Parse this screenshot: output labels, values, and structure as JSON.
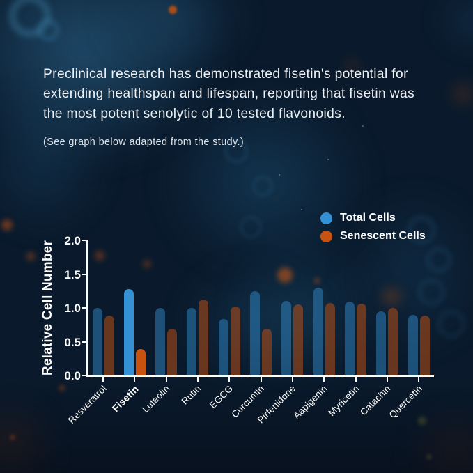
{
  "intro": {
    "lines": [
      "Preclinical research has demonstrated fisetin's potential for",
      "extending healthspan and lifespan, reporting that fisetin was",
      "the most potent senolytic of 10 tested flavonoids."
    ],
    "note": "(See graph below adapted from the study.)"
  },
  "colors": {
    "total_cells": "#3492d4",
    "senescent_cells": "#c8520f",
    "background": "#0a1a2c",
    "text": "#edf1f5"
  },
  "legend": {
    "items": [
      {
        "label": "Total Cells",
        "color": "#3492d4"
      },
      {
        "label": "Senescent Cells",
        "color": "#c8520f"
      }
    ]
  },
  "chart_data": {
    "type": "bar",
    "title": "",
    "xlabel": "",
    "ylabel": "Relative Cell Number",
    "ylim": [
      0,
      2.0
    ],
    "yticks": [
      "0.0",
      "0.5",
      "1.0",
      "1.5",
      "2.0"
    ],
    "grid": false,
    "legend_position": "upper right",
    "highlight_category": "Fisetin",
    "categories": [
      "Resveratrol",
      "Fisetin",
      "Luteolin",
      "Rutin",
      "EGCG",
      "Curcumin",
      "Pirfenidone",
      "Aapigenin",
      "Myricetin",
      "Catachin",
      "Quercetin"
    ],
    "series": [
      {
        "name": "Total Cells",
        "color": "#3492d4",
        "values": [
          1.0,
          1.28,
          1.0,
          1.0,
          0.83,
          1.25,
          1.1,
          1.3,
          1.09,
          0.95,
          0.9
        ]
      },
      {
        "name": "Senescent Cells",
        "color": "#c8520f",
        "values": [
          0.89,
          0.39,
          0.69,
          1.12,
          1.02,
          0.69,
          1.05,
          1.07,
          1.06,
          1.0,
          0.89
        ]
      }
    ]
  }
}
